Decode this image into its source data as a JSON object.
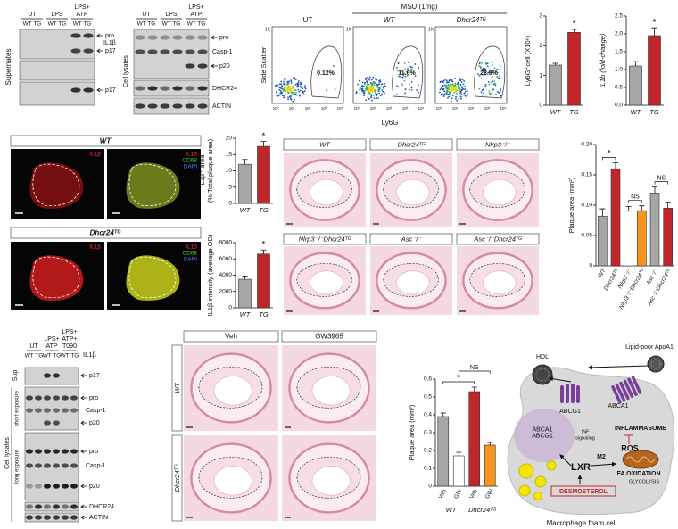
{
  "chart_data": [
    {
      "type": "bar",
      "y_label": "Ly6G⁺cell (X10⁶)",
      "categories": [
        "WT",
        "TG"
      ],
      "values": [
        1.35,
        2.45
      ],
      "errors": [
        0.06,
        0.1
      ],
      "colors": [
        "#a6a6a6",
        "#c0272d"
      ],
      "ylim": [
        0,
        3
      ],
      "yticks": [
        0,
        1,
        2,
        3
      ],
      "annotations": [
        "*"
      ]
    },
    {
      "type": "bar",
      "y_label": "IL1b (fold-change)",
      "categories": [
        "WT",
        "TG"
      ],
      "values": [
        1.1,
        1.95
      ],
      "errors": [
        0.12,
        0.22
      ],
      "colors": [
        "#a6a6a6",
        "#c0272d"
      ],
      "ylim": [
        0,
        2.5
      ],
      "yticks": [
        {
          "value": 0,
          "label": "0.0"
        },
        0.5,
        {
          "value": 1,
          "label": "1.0"
        },
        1.5,
        {
          "value": 2,
          "label": "2.0"
        },
        2.5
      ],
      "annotations": [
        "*"
      ]
    },
    {
      "type": "bar",
      "y_label": [
        "IL1β⁺ area",
        "(% Total plaque area)"
      ],
      "categories": [
        "WT",
        "TG"
      ],
      "values": [
        12,
        17.5
      ],
      "errors": [
        1.5,
        1.5
      ],
      "colors": [
        "#a6a6a6",
        "#c0272d"
      ],
      "ylim": [
        0,
        20
      ],
      "yticks": [
        0,
        5,
        10,
        15,
        20
      ],
      "annotations": [
        "*"
      ]
    },
    {
      "type": "bar",
      "y_label": "IL1β intensity (average OD)",
      "categories": [
        "WT",
        "TG"
      ],
      "values": [
        3500,
        6600
      ],
      "errors": [
        400,
        500
      ],
      "colors": [
        "#a6a6a6",
        "#c0272d"
      ],
      "ylim": [
        0,
        8000
      ],
      "yticks": [
        0,
        2000,
        4000,
        6000,
        8000
      ],
      "annotations": [
        "*"
      ]
    },
    {
      "type": "bar",
      "y_label": "Plaque area (mm²)",
      "categories": [
        "WT",
        "Dhcr24ᵀᴳ",
        "Nlrp3⁻/⁻",
        "Nlrp3⁻/⁻Dhcr24ᵀᴳ",
        "Asc⁻/⁻",
        "Asc⁻/⁻Dhcr24ᵀᴳ"
      ],
      "values": [
        0.082,
        0.16,
        0.09,
        0.091,
        0.12,
        0.095
      ],
      "errors": [
        0.012,
        0.01,
        0.008,
        0.008,
        0.01,
        0.01
      ],
      "colors": [
        "#a6a6a6",
        "#c0272d",
        "#ffffff",
        "#f7941d",
        "#a6a6a6",
        "#c0272d"
      ],
      "ylim": [
        0,
        0.2
      ],
      "yticks": [
        0,
        0.05,
        {
          "value": 0.1,
          "label": "0.10"
        },
        0.15,
        {
          "value": 0.2,
          "label": "0.20"
        }
      ],
      "annotations": [
        "*",
        "NS",
        "NS"
      ]
    },
    {
      "type": "bar",
      "y_label": "Plaque area (mm²)",
      "categories": [
        "Veh",
        "GW",
        "Veh",
        "GW"
      ],
      "groups": [
        "WT",
        "Dhcr24ᵀᴳ"
      ],
      "values": [
        0.39,
        0.17,
        0.53,
        0.23
      ],
      "errors": [
        0.02,
        0.02,
        0.025,
        0.015
      ],
      "colors": [
        "#a6a6a6",
        "#ffffff",
        "#c0272d",
        "#f7941d"
      ],
      "ylim": [
        0,
        0.6
      ],
      "yticks": [
        0,
        0.1,
        0.2,
        0.3,
        0.4,
        0.5,
        0.6
      ],
      "annotations": [
        "*",
        "NS"
      ]
    }
  ],
  "blot_a": {
    "conditions": [
      "UT",
      "LPS",
      "LPS+ ATP"
    ],
    "genotypes": [
      "WT TG",
      "WT TG",
      "WT TG"
    ],
    "bands": [
      "pro",
      "IL1β",
      "p17",
      "p17"
    ],
    "sample": "Supernates"
  },
  "blot_b": {
    "conditions": [
      "UT",
      "LPS",
      "LPS+ ATP"
    ],
    "genotypes": [
      "WT TG",
      "WT TG",
      "WT TG"
    ],
    "bands": [
      "pro",
      "Casp-1",
      "p20",
      "DHCR24",
      "ACTIN"
    ],
    "sample": "Cell lysates"
  },
  "flow": {
    "treatment": "MSU (1mg)",
    "y_label": "Side Scatter",
    "x_label": "Ly6G",
    "y_tick": "1K",
    "x_ticks": [
      "10⁰",
      "10¹",
      "10²",
      "10³",
      "10⁴"
    ],
    "panels": [
      {
        "label": "UT",
        "gate": "0.12%"
      },
      {
        "label": "WT",
        "gate": "11.6%"
      },
      {
        "label": "Dhcr24ᵀᴳ",
        "gate": "23.9%"
      }
    ]
  },
  "if_images": {
    "genotypes": [
      "WT",
      "Dhcr24ᵀᴳ"
    ],
    "stains": [
      "IL1β",
      "CD68",
      "DAPI"
    ]
  },
  "histology_a": [
    "WT",
    "Dhcr24ᵀᴳ",
    "Nlrp3⁻/⁻",
    "Nlrp3⁻/⁻Dhcr24ᵀᴳ",
    "Asc⁻/⁻",
    "Asc⁻/⁻Dhcr24ᵀᴳ"
  ],
  "blot_c": {
    "conditions": [
      "UT",
      "LPS+ ATP",
      "LPS+ ATP+ T090"
    ],
    "genotypes": [
      "WT TG",
      "WT TG",
      "WT TG"
    ],
    "protein": "IL1β",
    "bands": [
      "p17",
      "pro",
      "Casp-1",
      "p20",
      "pro",
      "Casp-1",
      "p20",
      "DHCR24",
      "ACTIN"
    ],
    "sections": [
      "Sup",
      "Cell lysates"
    ],
    "exposures": [
      "short exposure",
      "long exposure"
    ]
  },
  "histology_b": {
    "treatments": [
      "Veh",
      "GW3965"
    ],
    "genotypes": [
      "WT",
      "Dhcr24ᵀᴳ"
    ]
  },
  "diagram": {
    "hdl": "HDL",
    "apoa1": "Lipid-poor ApoA1",
    "abcg1": "ABCG1",
    "abca1": "ABCA1",
    "nucleus": "ABCA1 ABCG1",
    "inf": "INF signaling",
    "inflammasome": "INFLAMMASOME",
    "ros": "ROS",
    "m2": "M2",
    "lxr": "LXR",
    "fa": "FA OXIDATION",
    "glycolysis": "GLYCOLYSIS",
    "desmosterol": "DESMOSTEROL",
    "caption": "Macrophage foam cell"
  }
}
